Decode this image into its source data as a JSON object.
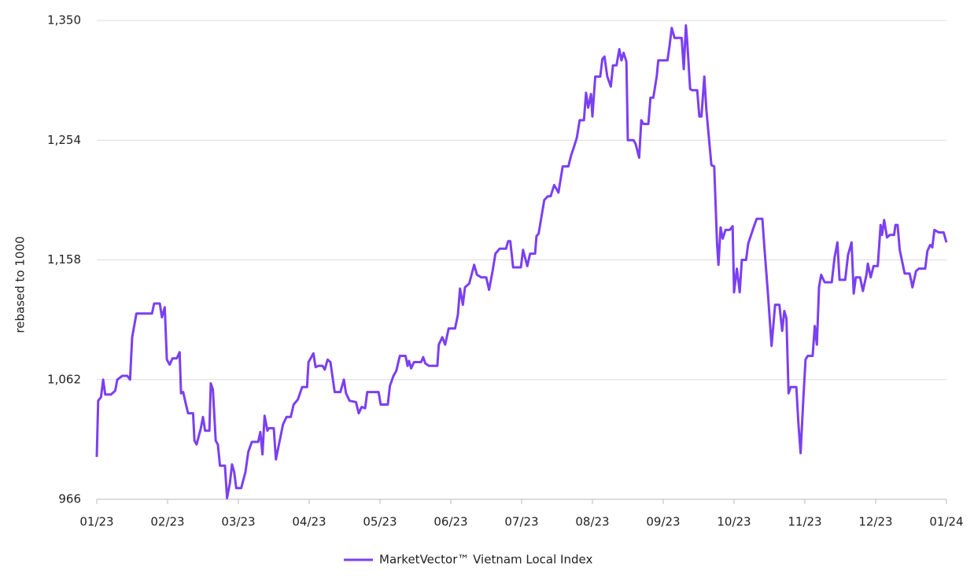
{
  "chart_data": {
    "type": "line",
    "y_label": "rebased to 1000",
    "x": [
      0,
      0.02,
      0.06,
      0.09,
      0.12,
      0.2,
      0.26,
      0.29,
      0.36,
      0.43,
      0.47,
      0.5,
      0.56,
      0.78,
      0.81,
      0.89,
      0.92,
      0.96,
      0.99,
      1.03,
      1.07,
      1.13,
      1.17,
      1.19,
      1.22,
      1.26,
      1.29,
      1.36,
      1.38,
      1.41,
      1.47,
      1.5,
      1.53,
      1.59,
      1.61,
      1.64,
      1.68,
      1.71,
      1.74,
      1.81,
      1.84,
      1.88,
      1.91,
      1.94,
      1.97,
      2.04,
      2.1,
      2.14,
      2.19,
      2.28,
      2.31,
      2.34,
      2.37,
      2.41,
      2.43,
      2.5,
      2.53,
      2.58,
      2.63,
      2.68,
      2.74,
      2.78,
      2.84,
      2.9,
      2.97,
      2.99,
      3.06,
      3.09,
      3.13,
      3.19,
      3.22,
      3.26,
      3.3,
      3.36,
      3.44,
      3.49,
      3.52,
      3.57,
      3.66,
      3.7,
      3.74,
      3.79,
      3.82,
      3.98,
      4.01,
      4.11,
      4.14,
      4.19,
      4.23,
      4.28,
      4.36,
      4.39,
      4.41,
      4.44,
      4.48,
      4.58,
      4.61,
      4.64,
      4.69,
      4.81,
      4.83,
      4.88,
      4.92,
      4.97,
      5.06,
      5.1,
      5.13,
      5.17,
      5.2,
      5.26,
      5.33,
      5.37,
      5.43,
      5.5,
      5.54,
      5.59,
      5.63,
      5.69,
      5.78,
      5.81,
      5.84,
      5.88,
      5.99,
      6.02,
      6.08,
      6.12,
      6.19,
      6.21,
      6.24,
      6.32,
      6.37,
      6.41,
      6.46,
      6.52,
      6.58,
      6.66,
      6.7,
      6.73,
      6.78,
      6.82,
      6.88,
      6.91,
      6.94,
      6.98,
      7,
      7.04,
      7.11,
      7.14,
      7.17,
      7.21,
      7.26,
      7.29,
      7.34,
      7.38,
      7.41,
      7.44,
      7.48,
      7.5,
      7.58,
      7.61,
      7.66,
      7.69,
      7.72,
      7.79,
      7.82,
      7.86,
      7.91,
      7.93,
      8.06,
      8.09,
      8.12,
      8.16,
      8.26,
      8.29,
      8.32,
      8.34,
      8.38,
      8.41,
      8.48,
      8.51,
      8.54,
      8.58,
      8.61,
      8.68,
      8.72,
      8.76,
      8.78,
      8.81,
      8.84,
      8.88,
      8.94,
      8.98,
      9,
      9.04,
      9.08,
      9.11,
      9.17,
      9.2,
      9.27,
      9.32,
      9.4,
      9.43,
      9.48,
      9.53,
      9.58,
      9.64,
      9.68,
      9.71,
      9.74,
      9.77,
      9.8,
      9.88,
      9.91,
      9.94,
      9.98,
      10.01,
      10.04,
      10.11,
      10.14,
      10.17,
      10.2,
      10.23,
      10.28,
      10.38,
      10.42,
      10.46,
      10.49,
      10.57,
      10.61,
      10.66,
      10.69,
      10.72,
      10.78,
      10.82,
      10.87,
      10.89,
      10.93,
      10.97,
      11.03,
      11.07,
      11.09,
      11.12,
      11.16,
      11.2,
      11.26,
      11.28,
      11.31,
      11.34,
      11.41,
      11.48,
      11.52,
      11.57,
      11.61,
      11.7,
      11.73,
      11.77,
      11.8,
      11.83,
      11.89,
      11.96,
      12
    ],
    "series": [
      {
        "name": "MarketVector™ Vietnam Local Index",
        "color": "#7b3ff2",
        "values": [
          1000,
          1045,
          1048,
          1062,
          1050,
          1050,
          1053,
          1062,
          1065,
          1065,
          1062,
          1096,
          1115,
          1115,
          1123,
          1123,
          1112,
          1120,
          1078,
          1074,
          1079,
          1079,
          1084,
          1051,
          1052,
          1042,
          1035,
          1035,
          1013,
          1010,
          1023,
          1032,
          1021,
          1021,
          1059,
          1054,
          1013,
          1010,
          993,
          993,
          967,
          979,
          994,
          988,
          975,
          975,
          988,
          1004,
          1012,
          1012,
          1020,
          1002,
          1033,
          1021,
          1023,
          1023,
          998,
          1012,
          1026,
          1032,
          1032,
          1042,
          1046,
          1056,
          1056,
          1076,
          1083,
          1072,
          1073,
          1073,
          1070,
          1078,
          1076,
          1052,
          1052,
          1062,
          1051,
          1045,
          1044,
          1035,
          1040,
          1039,
          1052,
          1052,
          1042,
          1042,
          1057,
          1065,
          1069,
          1081,
          1081,
          1073,
          1077,
          1071,
          1076,
          1076,
          1080,
          1075,
          1073,
          1073,
          1090,
          1096,
          1090,
          1103,
          1103,
          1114,
          1135,
          1122,
          1136,
          1139,
          1154,
          1146,
          1144,
          1144,
          1134,
          1149,
          1163,
          1167,
          1167,
          1173,
          1173,
          1152,
          1152,
          1166,
          1153,
          1163,
          1163,
          1177,
          1179,
          1206,
          1209,
          1209,
          1218,
          1212,
          1233,
          1233,
          1242,
          1247,
          1256,
          1270,
          1270,
          1292,
          1280,
          1291,
          1273,
          1305,
          1305,
          1319,
          1321,
          1305,
          1297,
          1314,
          1314,
          1327,
          1318,
          1324,
          1317,
          1254,
          1254,
          1251,
          1240,
          1270,
          1267,
          1267,
          1288,
          1288,
          1306,
          1318,
          1318,
          1330,
          1344,
          1336,
          1336,
          1311,
          1346,
          1332,
          1295,
          1294,
          1294,
          1273,
          1273,
          1305,
          1278,
          1234,
          1233,
          1171,
          1154,
          1184,
          1175,
          1182,
          1182,
          1185,
          1132,
          1151,
          1132,
          1158,
          1158,
          1171,
          1183,
          1191,
          1191,
          1167,
          1130,
          1089,
          1122,
          1122,
          1101,
          1117,
          1111,
          1051,
          1056,
          1056,
          1026,
          1003,
          1048,
          1078,
          1081,
          1081,
          1105,
          1090,
          1136,
          1146,
          1140,
          1140,
          1160,
          1172,
          1142,
          1142,
          1162,
          1172,
          1131,
          1144,
          1144,
          1133,
          1146,
          1155,
          1144,
          1153,
          1153,
          1186,
          1178,
          1190,
          1176,
          1178,
          1178,
          1186,
          1186,
          1166,
          1147,
          1147,
          1136,
          1149,
          1151,
          1151,
          1165,
          1170,
          1168,
          1182,
          1180,
          1180,
          1172
        ]
      }
    ],
    "xlim": [
      0,
      12
    ],
    "xticks": [
      {
        "value": 0,
        "label": "01/23"
      },
      {
        "value": 1,
        "label": "02/23"
      },
      {
        "value": 2,
        "label": "03/23"
      },
      {
        "value": 3,
        "label": "04/23"
      },
      {
        "value": 4,
        "label": "05/23"
      },
      {
        "value": 5,
        "label": "06/23"
      },
      {
        "value": 6,
        "label": "07/23"
      },
      {
        "value": 7,
        "label": "08/23"
      },
      {
        "value": 8,
        "label": "09/23"
      },
      {
        "value": 9,
        "label": "10/23"
      },
      {
        "value": 10,
        "label": "11/23"
      },
      {
        "value": 11,
        "label": "12/23"
      },
      {
        "value": 12,
        "label": "01/24"
      }
    ],
    "ylim": [
      966,
      1350
    ],
    "yticks": [
      966,
      {
        "value": 1062,
        "label": "1,062"
      },
      {
        "value": 1158,
        "label": "1,158"
      },
      {
        "value": 1254,
        "label": "1,254"
      },
      {
        "value": 1350,
        "label": "1,350"
      }
    ],
    "grid": true,
    "legend": "bottom"
  }
}
